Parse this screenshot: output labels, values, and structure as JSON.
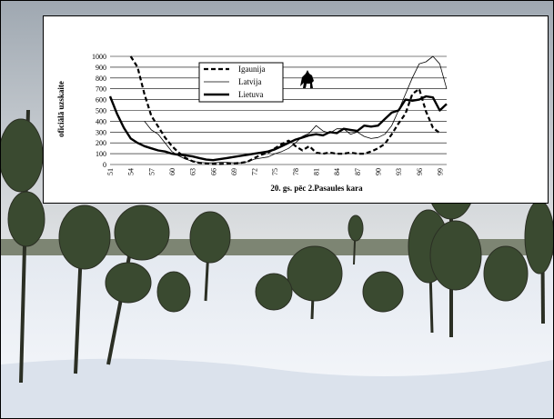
{
  "chart_data": {
    "type": "line",
    "xlabel": "20. gs. pēc 2.Pasaules kara",
    "ylabel": "oficiālā uzskaite",
    "ylim": [
      0,
      1000
    ],
    "yticks": [
      0,
      100,
      200,
      300,
      400,
      500,
      600,
      700,
      800,
      900,
      1000
    ],
    "xlim": [
      51,
      100
    ],
    "xticks": [
      51,
      54,
      57,
      60,
      63,
      66,
      69,
      72,
      75,
      78,
      81,
      84,
      87,
      90,
      93,
      96,
      99
    ],
    "grid": "horizontal",
    "legend_position": "upper-center",
    "series": [
      {
        "name": "Igaunija",
        "style": "dashed",
        "x": [
          54,
          55,
          56,
          57,
          58,
          59,
          60,
          61,
          62,
          63,
          64,
          65,
          66,
          67,
          68,
          69,
          70,
          71,
          72,
          73,
          74,
          75,
          76,
          77,
          78,
          79,
          80,
          81,
          82,
          83,
          84,
          85,
          86,
          87,
          88,
          89,
          90,
          91,
          92,
          93,
          94,
          95,
          96,
          97,
          98,
          99
        ],
        "y": [
          1000,
          900,
          650,
          450,
          350,
          250,
          170,
          110,
          60,
          30,
          15,
          10,
          5,
          5,
          8,
          10,
          15,
          25,
          60,
          90,
          110,
          150,
          190,
          220,
          170,
          130,
          170,
          110,
          100,
          110,
          100,
          100,
          110,
          100,
          100,
          120,
          150,
          190,
          280,
          380,
          470,
          650,
          700,
          490,
          340,
          290
        ]
      },
      {
        "name": "Latvija",
        "style": "thin",
        "x": [
          56,
          57,
          58,
          59,
          60,
          61,
          62,
          63,
          64,
          65,
          66,
          67,
          68,
          69,
          70,
          71,
          72,
          73,
          74,
          75,
          76,
          77,
          78,
          79,
          80,
          81,
          82,
          83,
          84,
          85,
          86,
          87,
          88,
          89,
          90,
          91,
          92,
          93,
          94,
          95,
          96,
          97,
          98,
          99,
          100
        ],
        "y": [
          400,
          320,
          280,
          200,
          120,
          80,
          50,
          30,
          20,
          15,
          15,
          20,
          20,
          15,
          15,
          25,
          50,
          60,
          70,
          100,
          120,
          150,
          200,
          260,
          290,
          360,
          310,
          290,
          330,
          330,
          280,
          300,
          260,
          240,
          250,
          280,
          360,
          500,
          650,
          800,
          930,
          950,
          1000,
          930,
          700
        ]
      },
      {
        "name": "Lietuva",
        "style": "thick",
        "x": [
          51,
          52,
          53,
          54,
          55,
          56,
          57,
          58,
          59,
          60,
          61,
          62,
          63,
          64,
          65,
          66,
          67,
          68,
          69,
          70,
          71,
          72,
          73,
          74,
          75,
          76,
          77,
          78,
          79,
          80,
          81,
          82,
          83,
          84,
          85,
          86,
          87,
          88,
          89,
          90,
          91,
          92,
          93,
          94,
          95,
          96,
          97,
          98,
          99,
          100
        ],
        "y": [
          630,
          470,
          340,
          240,
          200,
          170,
          150,
          130,
          120,
          100,
          90,
          85,
          75,
          60,
          45,
          40,
          50,
          60,
          70,
          80,
          90,
          100,
          110,
          120,
          140,
          170,
          200,
          230,
          250,
          270,
          280,
          270,
          300,
          290,
          330,
          320,
          310,
          360,
          350,
          360,
          420,
          480,
          500,
          600,
          590,
          600,
          630,
          620,
          500,
          560
        ]
      }
    ],
    "colors": {
      "line": "#000000",
      "grid": "#000000",
      "chart_background": "#ffffff",
      "sky_top": "#aeb6be",
      "sky_bottom": "#dcdedf",
      "snow": "#f2f5f9",
      "tree": "#2f3a28"
    },
    "icons": {
      "legend_figure": "wolf-icon"
    }
  }
}
